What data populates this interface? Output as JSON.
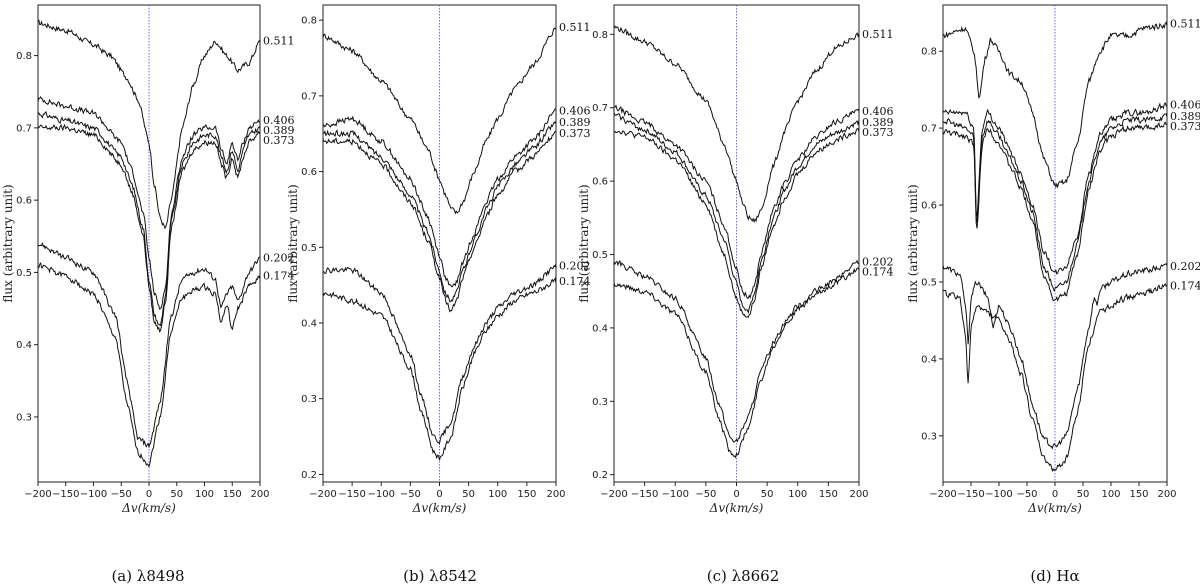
{
  "chart_data": [
    {
      "type": "line",
      "caption": "(a) λ8498",
      "xlabel": "Δv(km/s)",
      "ylabel": "flux (arbitrary unit)",
      "xlim": [
        -200,
        200
      ],
      "ylim": [
        0.21,
        0.87
      ],
      "xticks": [
        -200,
        -150,
        -100,
        -50,
        0,
        50,
        100,
        150,
        200
      ],
      "yticks": [
        0.3,
        0.4,
        0.5,
        0.6,
        0.7,
        0.8
      ],
      "reference_line_x": 0,
      "series": [
        {
          "name": "0.511",
          "x": [
            -200,
            -150,
            -100,
            -70,
            -40,
            -20,
            0,
            10,
            20,
            30,
            40,
            60,
            80,
            100,
            120,
            140,
            160,
            180,
            200
          ],
          "y": [
            0.845,
            0.835,
            0.815,
            0.8,
            0.77,
            0.74,
            0.68,
            0.62,
            0.575,
            0.56,
            0.6,
            0.7,
            0.76,
            0.8,
            0.82,
            0.8,
            0.78,
            0.79,
            0.82
          ]
        },
        {
          "name": "0.406",
          "x": [
            -200,
            -150,
            -100,
            -50,
            -30,
            -10,
            0,
            10,
            20,
            30,
            40,
            60,
            80,
            100,
            120,
            130,
            140,
            150,
            160,
            170,
            180,
            200
          ],
          "y": [
            0.74,
            0.73,
            0.72,
            0.68,
            0.64,
            0.58,
            0.52,
            0.47,
            0.45,
            0.48,
            0.58,
            0.66,
            0.69,
            0.7,
            0.7,
            0.67,
            0.65,
            0.68,
            0.655,
            0.68,
            0.7,
            0.71
          ]
        },
        {
          "name": "0.389",
          "x": [
            -200,
            -150,
            -100,
            -50,
            -30,
            -10,
            0,
            10,
            20,
            30,
            40,
            60,
            80,
            100,
            120,
            130,
            140,
            150,
            160,
            170,
            180,
            200
          ],
          "y": [
            0.72,
            0.71,
            0.7,
            0.66,
            0.62,
            0.56,
            0.49,
            0.44,
            0.425,
            0.47,
            0.57,
            0.65,
            0.68,
            0.69,
            0.69,
            0.66,
            0.64,
            0.67,
            0.64,
            0.67,
            0.69,
            0.7
          ]
        },
        {
          "name": "0.373",
          "x": [
            -200,
            -150,
            -100,
            -50,
            -30,
            -10,
            0,
            10,
            20,
            30,
            40,
            60,
            80,
            100,
            120,
            130,
            140,
            150,
            160,
            170,
            180,
            200
          ],
          "y": [
            0.7,
            0.7,
            0.69,
            0.65,
            0.61,
            0.55,
            0.48,
            0.43,
            0.42,
            0.46,
            0.56,
            0.64,
            0.67,
            0.68,
            0.68,
            0.65,
            0.63,
            0.66,
            0.63,
            0.66,
            0.68,
            0.695
          ]
        },
        {
          "name": "0.202",
          "x": [
            -200,
            -150,
            -100,
            -60,
            -40,
            -20,
            0,
            20,
            40,
            60,
            80,
            100,
            120,
            130,
            140,
            150,
            160,
            180,
            200
          ],
          "y": [
            0.54,
            0.52,
            0.5,
            0.44,
            0.35,
            0.27,
            0.26,
            0.32,
            0.44,
            0.49,
            0.5,
            0.505,
            0.49,
            0.45,
            0.47,
            0.48,
            0.46,
            0.5,
            0.52
          ]
        },
        {
          "name": "0.174",
          "x": [
            -200,
            -150,
            -100,
            -60,
            -40,
            -20,
            0,
            20,
            40,
            60,
            80,
            100,
            120,
            130,
            140,
            150,
            160,
            180,
            200
          ],
          "y": [
            0.51,
            0.495,
            0.47,
            0.41,
            0.32,
            0.25,
            0.235,
            0.3,
            0.42,
            0.465,
            0.475,
            0.48,
            0.47,
            0.43,
            0.455,
            0.42,
            0.45,
            0.48,
            0.495
          ]
        }
      ]
    },
    {
      "type": "line",
      "caption": "(b) λ8542",
      "xlabel": "Δv(km/s)",
      "ylabel": "flux (arbitrary unit)",
      "xlim": [
        -200,
        200
      ],
      "ylim": [
        0.19,
        0.82
      ],
      "xticks": [
        -200,
        -150,
        -100,
        -50,
        0,
        50,
        100,
        150,
        200
      ],
      "yticks": [
        0.2,
        0.3,
        0.4,
        0.5,
        0.6,
        0.7,
        0.8
      ],
      "reference_line_x": 0,
      "series": [
        {
          "name": "0.511",
          "x": [
            -200,
            -150,
            -100,
            -50,
            -20,
            0,
            10,
            20,
            30,
            40,
            60,
            80,
            100,
            130,
            160,
            200
          ],
          "y": [
            0.78,
            0.76,
            0.72,
            0.67,
            0.63,
            0.59,
            0.57,
            0.55,
            0.545,
            0.56,
            0.6,
            0.64,
            0.67,
            0.71,
            0.74,
            0.79
          ]
        },
        {
          "name": "0.406",
          "x": [
            -200,
            -150,
            -100,
            -50,
            -20,
            0,
            10,
            20,
            30,
            40,
            60,
            80,
            100,
            130,
            160,
            200
          ],
          "y": [
            0.66,
            0.67,
            0.64,
            0.59,
            0.54,
            0.49,
            0.46,
            0.445,
            0.455,
            0.48,
            0.52,
            0.56,
            0.59,
            0.62,
            0.64,
            0.68
          ]
        },
        {
          "name": "0.389",
          "x": [
            -200,
            -150,
            -100,
            -50,
            -20,
            0,
            10,
            20,
            30,
            40,
            60,
            80,
            100,
            130,
            160,
            200
          ],
          "y": [
            0.65,
            0.65,
            0.62,
            0.57,
            0.52,
            0.47,
            0.44,
            0.43,
            0.44,
            0.47,
            0.51,
            0.55,
            0.58,
            0.61,
            0.63,
            0.665
          ]
        },
        {
          "name": "0.373",
          "x": [
            -200,
            -150,
            -100,
            -50,
            -20,
            0,
            10,
            20,
            30,
            40,
            60,
            80,
            100,
            130,
            160,
            200
          ],
          "y": [
            0.64,
            0.64,
            0.61,
            0.56,
            0.51,
            0.46,
            0.43,
            0.415,
            0.43,
            0.46,
            0.5,
            0.54,
            0.57,
            0.6,
            0.62,
            0.65
          ]
        },
        {
          "name": "0.202",
          "x": [
            -200,
            -150,
            -100,
            -50,
            -30,
            -10,
            0,
            20,
            40,
            60,
            80,
            100,
            130,
            160,
            200
          ],
          "y": [
            0.47,
            0.47,
            0.44,
            0.36,
            0.3,
            0.25,
            0.245,
            0.27,
            0.33,
            0.37,
            0.4,
            0.42,
            0.44,
            0.45,
            0.475
          ]
        },
        {
          "name": "0.174",
          "x": [
            -200,
            -150,
            -100,
            -50,
            -30,
            -10,
            0,
            20,
            40,
            60,
            80,
            100,
            130,
            160,
            200
          ],
          "y": [
            0.44,
            0.43,
            0.41,
            0.34,
            0.28,
            0.23,
            0.222,
            0.25,
            0.315,
            0.36,
            0.39,
            0.41,
            0.43,
            0.44,
            0.455
          ]
        }
      ]
    },
    {
      "type": "line",
      "caption": "(c) λ8662",
      "xlabel": "Δv(km/s)",
      "ylabel": "flux (arbitrary unit)",
      "xlim": [
        -200,
        200
      ],
      "ylim": [
        0.19,
        0.84
      ],
      "xticks": [
        -200,
        -150,
        -100,
        -50,
        0,
        50,
        100,
        150,
        200
      ],
      "yticks": [
        0.2,
        0.3,
        0.4,
        0.5,
        0.6,
        0.7,
        0.8
      ],
      "reference_line_x": 0,
      "series": [
        {
          "name": "0.511",
          "x": [
            -200,
            -150,
            -100,
            -50,
            -20,
            0,
            10,
            20,
            30,
            40,
            60,
            80,
            100,
            130,
            160,
            200
          ],
          "y": [
            0.81,
            0.79,
            0.76,
            0.71,
            0.65,
            0.6,
            0.57,
            0.55,
            0.545,
            0.56,
            0.62,
            0.67,
            0.71,
            0.75,
            0.78,
            0.8
          ]
        },
        {
          "name": "0.406",
          "x": [
            -200,
            -150,
            -100,
            -50,
            -20,
            0,
            10,
            20,
            30,
            40,
            60,
            80,
            100,
            130,
            160,
            200
          ],
          "y": [
            0.7,
            0.68,
            0.65,
            0.6,
            0.54,
            0.48,
            0.45,
            0.44,
            0.46,
            0.5,
            0.56,
            0.6,
            0.63,
            0.66,
            0.68,
            0.695
          ]
        },
        {
          "name": "0.389",
          "x": [
            -200,
            -150,
            -100,
            -50,
            -20,
            0,
            10,
            20,
            30,
            40,
            60,
            80,
            100,
            130,
            160,
            200
          ],
          "y": [
            0.69,
            0.67,
            0.64,
            0.58,
            0.52,
            0.46,
            0.43,
            0.425,
            0.45,
            0.49,
            0.55,
            0.59,
            0.62,
            0.65,
            0.665,
            0.68
          ]
        },
        {
          "name": "0.373",
          "x": [
            -200,
            -150,
            -100,
            -50,
            -20,
            0,
            10,
            20,
            30,
            40,
            60,
            80,
            100,
            130,
            160,
            200
          ],
          "y": [
            0.67,
            0.66,
            0.63,
            0.57,
            0.5,
            0.44,
            0.42,
            0.415,
            0.44,
            0.48,
            0.54,
            0.58,
            0.61,
            0.64,
            0.655,
            0.67
          ]
        },
        {
          "name": "0.202",
          "x": [
            -200,
            -150,
            -100,
            -50,
            -30,
            -10,
            0,
            20,
            40,
            60,
            80,
            100,
            130,
            160,
            200
          ],
          "y": [
            0.49,
            0.47,
            0.44,
            0.36,
            0.3,
            0.25,
            0.245,
            0.28,
            0.34,
            0.38,
            0.41,
            0.43,
            0.45,
            0.465,
            0.49
          ]
        },
        {
          "name": "0.174",
          "x": [
            -200,
            -150,
            -100,
            -50,
            -30,
            -10,
            0,
            20,
            40,
            60,
            80,
            100,
            130,
            160,
            200
          ],
          "y": [
            0.46,
            0.45,
            0.42,
            0.34,
            0.28,
            0.23,
            0.228,
            0.265,
            0.33,
            0.375,
            0.405,
            0.425,
            0.445,
            0.46,
            0.48
          ]
        }
      ]
    },
    {
      "type": "line",
      "caption": "(d) Hα",
      "xlabel": "Δv(km/s)",
      "ylabel": "flux (arbitrary unit)",
      "xlim": [
        -200,
        200
      ],
      "ylim": [
        0.24,
        0.86
      ],
      "xticks": [
        -200,
        -150,
        -100,
        -50,
        0,
        50,
        100,
        150,
        200
      ],
      "yticks": [
        0.3,
        0.4,
        0.5,
        0.6,
        0.7,
        0.8
      ],
      "reference_line_x": 0,
      "series": [
        {
          "name": "0.511",
          "x": [
            -200,
            -160,
            -145,
            -135,
            -125,
            -115,
            -100,
            -80,
            -60,
            -40,
            -20,
            0,
            20,
            40,
            60,
            80,
            100,
            130,
            160,
            200
          ],
          "y": [
            0.82,
            0.83,
            0.8,
            0.74,
            0.79,
            0.815,
            0.8,
            0.77,
            0.76,
            0.72,
            0.66,
            0.625,
            0.63,
            0.68,
            0.76,
            0.8,
            0.82,
            0.82,
            0.83,
            0.835
          ]
        },
        {
          "name": "0.406",
          "x": [
            -200,
            -160,
            -145,
            -140,
            -130,
            -120,
            -100,
            -80,
            -60,
            -40,
            -20,
            0,
            20,
            40,
            60,
            80,
            100,
            130,
            160,
            200
          ],
          "y": [
            0.72,
            0.72,
            0.7,
            0.58,
            0.7,
            0.72,
            0.7,
            0.67,
            0.64,
            0.6,
            0.54,
            0.51,
            0.52,
            0.56,
            0.64,
            0.69,
            0.71,
            0.72,
            0.72,
            0.73
          ]
        },
        {
          "name": "0.389",
          "x": [
            -200,
            -160,
            -145,
            -140,
            -130,
            -120,
            -100,
            -80,
            -60,
            -40,
            -20,
            0,
            20,
            40,
            60,
            80,
            100,
            130,
            160,
            200
          ],
          "y": [
            0.71,
            0.7,
            0.69,
            0.57,
            0.69,
            0.71,
            0.69,
            0.66,
            0.63,
            0.59,
            0.52,
            0.49,
            0.5,
            0.55,
            0.63,
            0.68,
            0.7,
            0.71,
            0.71,
            0.715
          ]
        },
        {
          "name": "0.373",
          "x": [
            -200,
            -160,
            -145,
            -140,
            -130,
            -120,
            -100,
            -80,
            -60,
            -40,
            -20,
            0,
            20,
            40,
            60,
            80,
            100,
            130,
            160,
            200
          ],
          "y": [
            0.695,
            0.69,
            0.68,
            0.56,
            0.68,
            0.7,
            0.68,
            0.65,
            0.62,
            0.58,
            0.51,
            0.475,
            0.485,
            0.535,
            0.62,
            0.67,
            0.69,
            0.7,
            0.7,
            0.705
          ]
        },
        {
          "name": "0.202",
          "x": [
            -200,
            -170,
            -160,
            -155,
            -150,
            -140,
            -120,
            -110,
            -105,
            -100,
            -80,
            -60,
            -40,
            -20,
            0,
            20,
            40,
            60,
            70,
            75,
            80,
            100,
            130,
            160,
            200
          ],
          "y": [
            0.52,
            0.51,
            0.47,
            0.42,
            0.48,
            0.5,
            0.48,
            0.44,
            0.46,
            0.47,
            0.44,
            0.4,
            0.34,
            0.295,
            0.285,
            0.3,
            0.36,
            0.44,
            0.48,
            0.47,
            0.49,
            0.5,
            0.51,
            0.515,
            0.52
          ]
        },
        {
          "name": "0.174",
          "x": [
            -200,
            -170,
            -160,
            -155,
            -150,
            -140,
            -120,
            -100,
            -80,
            -60,
            -40,
            -20,
            0,
            20,
            40,
            60,
            80,
            100,
            130,
            160,
            200
          ],
          "y": [
            0.485,
            0.48,
            0.43,
            0.365,
            0.44,
            0.47,
            0.46,
            0.45,
            0.42,
            0.38,
            0.32,
            0.27,
            0.255,
            0.27,
            0.33,
            0.42,
            0.46,
            0.47,
            0.48,
            0.485,
            0.495
          ]
        }
      ]
    }
  ]
}
